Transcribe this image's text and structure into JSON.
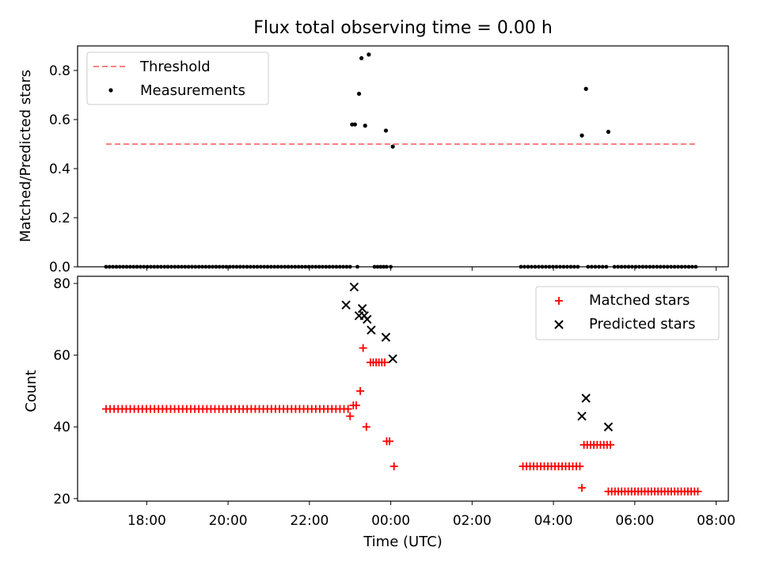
{
  "figure": {
    "title": "Flux total observing time = 0.00 h"
  },
  "chart_data": [
    {
      "type": "scatter",
      "ylabel": "Matched/Predicted stars",
      "xlim": [
        16.3,
        32.3
      ],
      "ylim": [
        0.0,
        0.9
      ],
      "yticks": [
        0.0,
        0.2,
        0.4,
        0.6,
        0.8
      ],
      "ytick_labels": [
        "0.0",
        "0.2",
        "0.4",
        "0.6",
        "0.8"
      ],
      "legend_position": "top-left",
      "legend": {
        "threshold": "Threshold",
        "measurements": "Measurements"
      },
      "threshold": {
        "name": "Threshold",
        "value": 0.5,
        "x_range": [
          17.0,
          31.5
        ],
        "color": "#ff8080",
        "style": "dashed"
      },
      "measurements": {
        "name": "Measurements",
        "color": "#000000",
        "points": [
          [
            23.05,
            0.58
          ],
          [
            23.12,
            0.58
          ],
          [
            23.22,
            0.705
          ],
          [
            23.28,
            0.85
          ],
          [
            23.37,
            0.575
          ],
          [
            23.46,
            0.865
          ],
          [
            23.88,
            0.555
          ],
          [
            24.05,
            0.49
          ],
          [
            28.7,
            0.535
          ],
          [
            28.8,
            0.725
          ],
          [
            29.35,
            0.55
          ]
        ],
        "zero_ranges": [
          {
            "from": 17.0,
            "to": 23.0,
            "n": 72
          },
          {
            "from": 23.18,
            "to": 23.18,
            "n": 1
          },
          {
            "from": 23.6,
            "to": 23.9,
            "n": 5
          },
          {
            "from": 24.0,
            "to": 24.0,
            "n": 1
          },
          {
            "from": 27.2,
            "to": 28.6,
            "n": 17
          },
          {
            "from": 28.85,
            "to": 29.3,
            "n": 6
          },
          {
            "from": 29.5,
            "to": 31.5,
            "n": 24
          }
        ]
      }
    },
    {
      "type": "scatter",
      "xlabel": "Time (UTC)",
      "ylabel": "Count",
      "xlim": [
        16.3,
        32.3
      ],
      "ylim": [
        19.3,
        82.0
      ],
      "yticks": [
        20,
        40,
        60,
        80
      ],
      "ytick_labels": [
        "20",
        "40",
        "60",
        "80"
      ],
      "xticks": [
        18,
        20,
        22,
        24,
        26,
        28,
        30,
        32
      ],
      "xtick_labels": [
        "18:00",
        "20:00",
        "22:00",
        "00:00",
        "02:00",
        "04:00",
        "06:00",
        "08:00"
      ],
      "legend_position": "top-right",
      "series": [
        {
          "name": "Matched stars",
          "marker": "plus",
          "color": "#ff0000",
          "points": [
            [
              22.95,
              45
            ],
            [
              23.0,
              43
            ],
            [
              23.08,
              46
            ],
            [
              23.15,
              46
            ],
            [
              23.25,
              50
            ],
            [
              23.32,
              62
            ],
            [
              23.4,
              40
            ],
            [
              23.9,
              36
            ],
            [
              23.97,
              36
            ],
            [
              24.08,
              29
            ],
            [
              28.7,
              23
            ]
          ],
          "ranges": [
            {
              "from": 17.0,
              "to": 22.85,
              "n": 60,
              "value": 45
            },
            {
              "from": 23.5,
              "to": 23.85,
              "n": 6,
              "value": 58
            },
            {
              "from": 27.25,
              "to": 28.65,
              "n": 17,
              "value": 29
            },
            {
              "from": 28.75,
              "to": 29.4,
              "n": 9,
              "value": 35
            },
            {
              "from": 29.35,
              "to": 31.55,
              "n": 28,
              "value": 22
            }
          ]
        },
        {
          "name": "Predicted stars",
          "marker": "x",
          "color": "#000000",
          "points": [
            [
              22.9,
              74
            ],
            [
              23.1,
              79
            ],
            [
              23.22,
              71
            ],
            [
              23.3,
              73
            ],
            [
              23.35,
              71
            ],
            [
              23.42,
              70
            ],
            [
              23.52,
              67
            ],
            [
              23.88,
              65
            ],
            [
              24.05,
              59
            ],
            [
              28.7,
              43
            ],
            [
              28.8,
              48
            ],
            [
              29.35,
              40
            ]
          ]
        }
      ]
    }
  ]
}
